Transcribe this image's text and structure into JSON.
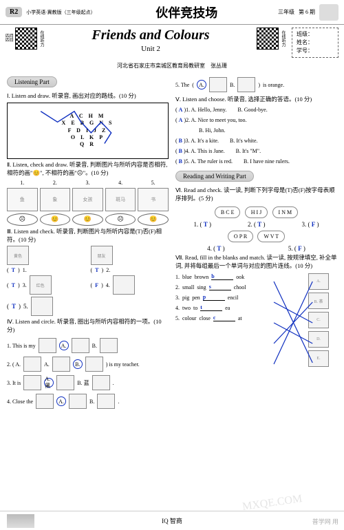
{
  "header": {
    "badge": "R2",
    "sub": "小学英语·冀教版（三年级起点）",
    "title": "伙伴竞技场",
    "grade": "三年级",
    "issue": "第 6 期"
  },
  "qr": {
    "left_top": "四月",
    "left_bottom": "四日",
    "left_label": "在线听力",
    "right_label": "在线听力"
  },
  "title": {
    "main": "Friends and Colours",
    "unit": "Unit 2"
  },
  "info": {
    "class": "班级：",
    "name": "姓名：",
    "id": "学号："
  },
  "author": "河北省石家庄市栾城区教育局教研室　张丛珊",
  "sections": {
    "listening": "Listening Part",
    "reading": "Reading and Writing Part"
  },
  "q1": {
    "head": "Ⅰ. Listen and draw. 听录音, 画出对应的路线。(10 分)",
    "rows": [
      "A C H M",
      "X E B G N S",
      "F D I J Z",
      "O L K P",
      "Q R"
    ]
  },
  "q2": {
    "head": "Ⅱ. Listen, check and draw. 听录音, 判断图片与所听内容是否相符, 相符的画\"😊\", 不相符的画\"☹\"。(10 分)",
    "nums": [
      "1.",
      "2.",
      "3.",
      "4.",
      "5."
    ],
    "imgs": [
      "鱼",
      "象",
      "女孩",
      "斑马",
      "书"
    ],
    "faces": [
      "☹",
      "😊",
      "😊",
      "☹",
      "😊"
    ]
  },
  "q3": {
    "head": "Ⅲ. Listen and check. 听录音, 判断图片与所听内容是(T)否(F)相符。(10 分)",
    "items": [
      {
        "label": "黄色",
        "n": "1.",
        "ans": "T"
      },
      {
        "label": "朋友",
        "n": "2.",
        "ans": "T"
      },
      {
        "label": "红色",
        "n": "3.",
        "ans": "T"
      },
      {
        "label": "",
        "n": "4.",
        "ans": "F"
      },
      {
        "label": "",
        "n": "5.",
        "ans": "T"
      }
    ]
  },
  "q4": {
    "head": "Ⅳ. Listen and circle. 听录音, 圈出与所听内容相符的一项。(10 分)",
    "rows": [
      {
        "pre": "1. This is my",
        "a": "A.",
        "b": "B.",
        "ans": "A"
      },
      {
        "pre": "2. ( A.",
        "mid": "B.",
        "post": ") is my teacher.",
        "ans": "B"
      },
      {
        "pre": "3. It is",
        "a": "A. 黑",
        "b": "B. 蓝",
        "post": ".",
        "ans": "A"
      },
      {
        "pre": "4. Close the",
        "a": "A.",
        "b": "B.",
        "post": ".",
        "ans": "A"
      },
      {
        "pre": "5. The",
        "a": "A.",
        "b": "B.",
        "post": " is orange.",
        "ans": "A"
      }
    ]
  },
  "q5": {
    "head": "Ⅴ. Listen and choose. 听录音, 选择正确的答语。(10 分)",
    "items": [
      {
        "ans": "A",
        "n": "1.",
        "a": "A. Hello, Jenny.",
        "b": "B. Good-bye."
      },
      {
        "ans": "A",
        "n": "2.",
        "a": "A. Nice to meet you, too.",
        "b": "B. Hi, John."
      },
      {
        "ans": "B",
        "n": "3.",
        "a": "A. It's a kite.",
        "b": "B. It's white."
      },
      {
        "ans": "B",
        "n": "4.",
        "a": "A. This is Jane.",
        "b": "B. It's \"M\"."
      },
      {
        "ans": "B",
        "n": "5.",
        "a": "A. The ruler is red.",
        "b": "B. I have nine rulers."
      }
    ]
  },
  "q6": {
    "head": "Ⅵ. Read and check. 读一读, 判断下列字母是(T)否(F)按字母表顺序排列。(5 分)",
    "bubbles": [
      "B  C  E",
      "H  I  J",
      "I  N  M",
      "O  P  R",
      "W  V  T"
    ],
    "ans": [
      "T",
      "T",
      "F",
      "T",
      "F"
    ],
    "nums": [
      "1.",
      "2.",
      "3.",
      "4.",
      "5."
    ]
  },
  "q7": {
    "head": "Ⅶ. Read, fill in the blanks and match. 读一读, 按规律填空, 补全单词, 并将每组最后一个单词与对应的图片连线。(10 分)",
    "rows": [
      {
        "n": "1.",
        "w1": "blue",
        "w2": "brown",
        "ans": "b",
        "rest": "ook",
        "note": "A."
      },
      {
        "n": "2.",
        "w1": "small",
        "w2": "sing",
        "ans": "s",
        "rest": "chool",
        "note": "B. 茶"
      },
      {
        "n": "3.",
        "w1": "pig",
        "w2": "pen",
        "ans": "p",
        "rest": "encil",
        "note": "C."
      },
      {
        "n": "4.",
        "w1": "two",
        "w2": "to",
        "ans": "t",
        "rest": "ea",
        "note": "D."
      },
      {
        "n": "5.",
        "w1": "colour",
        "w2": "close",
        "ans": "c",
        "rest": "at",
        "note": "E."
      }
    ],
    "line_color": "#1030c0"
  },
  "footer": {
    "iq": "IQ  智商"
  },
  "watermark": {
    "big": "MXQE.COM",
    "small": "普学网 用"
  }
}
